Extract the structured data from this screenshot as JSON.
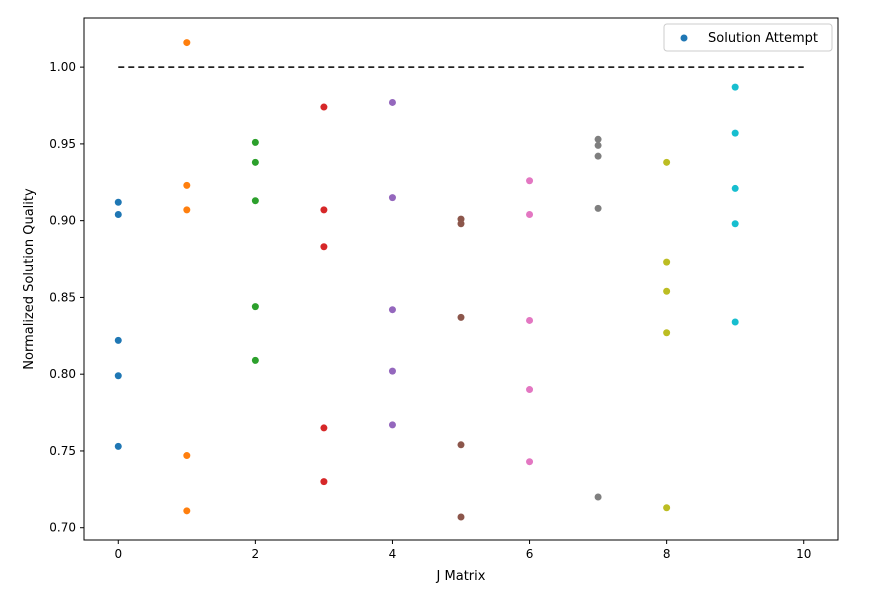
{
  "chart_data": {
    "type": "scatter",
    "xlabel": "J Matrix",
    "ylabel": "Normalized Solution Quality",
    "xlim": [
      -0.5,
      10.5
    ],
    "ylim": [
      0.692,
      1.032
    ],
    "xticks": [
      0,
      2,
      4,
      6,
      8,
      10
    ],
    "yticks": [
      0.7,
      0.75,
      0.8,
      0.85,
      0.9,
      0.95,
      1.0
    ],
    "xtick_labels": [
      "0",
      "2",
      "4",
      "6",
      "8",
      "10"
    ],
    "ytick_labels": [
      "0.70",
      "0.75",
      "0.80",
      "0.85",
      "0.90",
      "0.95",
      "1.00"
    ],
    "grid": false,
    "legend": {
      "placement": "top-right",
      "entries": [
        "Solution Attempt"
      ],
      "marker_color": "#1f77b4"
    },
    "reference_line": {
      "y": 1.0,
      "x_range": [
        0,
        10
      ],
      "style": "dashed",
      "color": "#000000"
    },
    "series": [
      {
        "x": 0,
        "color": "#1f77b4",
        "values": [
          0.912,
          0.904,
          0.822,
          0.799,
          0.753
        ]
      },
      {
        "x": 1,
        "color": "#ff7f0e",
        "values": [
          1.016,
          0.923,
          0.907,
          0.747,
          0.711
        ]
      },
      {
        "x": 2,
        "color": "#2ca02c",
        "values": [
          0.951,
          0.938,
          0.913,
          0.844,
          0.809
        ]
      },
      {
        "x": 3,
        "color": "#d62728",
        "values": [
          0.974,
          0.907,
          0.883,
          0.765,
          0.73
        ]
      },
      {
        "x": 4,
        "color": "#9467bd",
        "values": [
          0.977,
          0.915,
          0.842,
          0.802,
          0.767
        ]
      },
      {
        "x": 5,
        "color": "#8c564b",
        "values": [
          0.901,
          0.898,
          0.837,
          0.754,
          0.707
        ]
      },
      {
        "x": 6,
        "color": "#e377c2",
        "values": [
          0.926,
          0.904,
          0.835,
          0.79,
          0.743
        ]
      },
      {
        "x": 7,
        "color": "#7f7f7f",
        "values": [
          0.953,
          0.949,
          0.942,
          0.908,
          0.72
        ]
      },
      {
        "x": 8,
        "color": "#bcbd22",
        "values": [
          0.938,
          0.873,
          0.854,
          0.827,
          0.713
        ]
      },
      {
        "x": 9,
        "color": "#17becf",
        "values": [
          0.987,
          0.957,
          0.921,
          0.898,
          0.834
        ]
      }
    ]
  }
}
